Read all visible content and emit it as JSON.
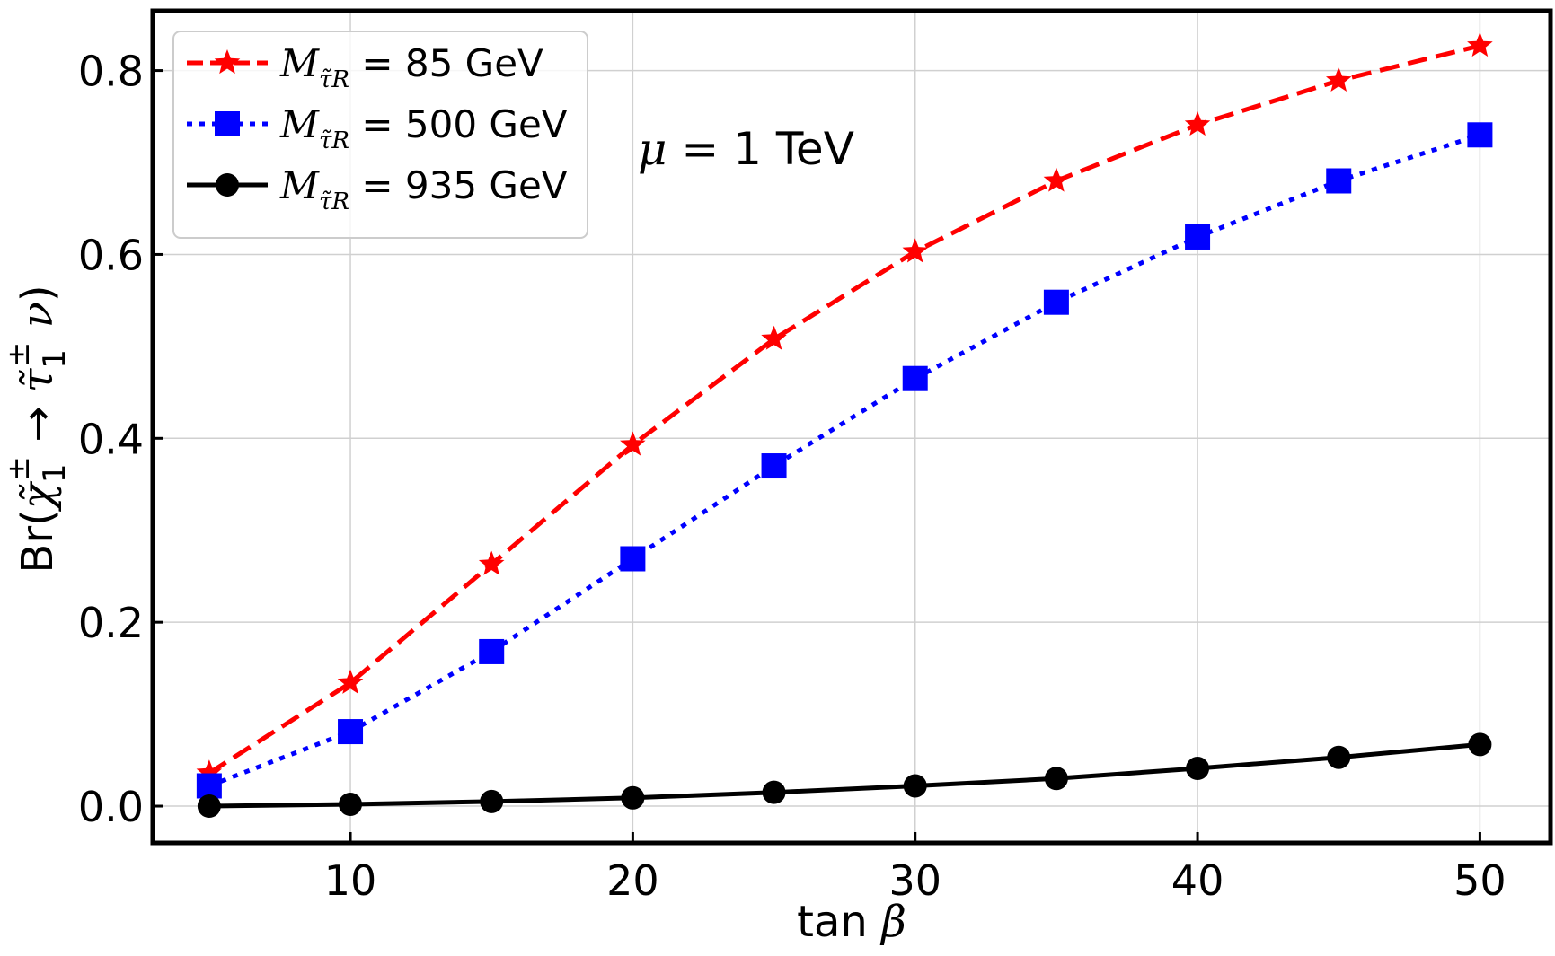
{
  "chart_data": {
    "type": "line",
    "xlabel": "tan β",
    "xlabel_text": "tan ",
    "xlabel_symbol": "β",
    "ylabel": "Br(χ̃1± → τ̃1± ν)",
    "xlim": [
      3,
      52.5
    ],
    "ylim": [
      -0.04,
      0.865
    ],
    "xticks": [
      10,
      20,
      30,
      40,
      50
    ],
    "yticks": [
      0.0,
      0.2,
      0.4,
      0.6,
      0.8
    ],
    "xtick_labels": [
      "10",
      "20",
      "30",
      "40",
      "50"
    ],
    "ytick_labels": [
      "0.0",
      "0.2",
      "0.4",
      "0.6",
      "0.8"
    ],
    "grid": true,
    "legend_position": "top-left",
    "annotation": {
      "symbol": "μ",
      "text": " = 1 TeV"
    },
    "x": [
      5,
      10,
      15,
      20,
      25,
      30,
      35,
      40,
      45,
      50
    ],
    "series": [
      {
        "name": "M_τ̃R = 85 GeV",
        "legend_mass": "M",
        "legend_sub": "τ̃R",
        "legend_value": " = 85 GeV",
        "color": "#ff0000",
        "line_style": "dashed",
        "marker": "star",
        "values": [
          0.036,
          0.134,
          0.263,
          0.393,
          0.508,
          0.603,
          0.68,
          0.741,
          0.789,
          0.827
        ]
      },
      {
        "name": "M_τ̃R = 500 GeV",
        "legend_mass": "M",
        "legend_sub": "τ̃R",
        "legend_value": " = 500 GeV",
        "color": "#0000ff",
        "line_style": "dotted",
        "marker": "square",
        "values": [
          0.022,
          0.081,
          0.168,
          0.269,
          0.37,
          0.465,
          0.548,
          0.619,
          0.68,
          0.73
        ]
      },
      {
        "name": "M_τ̃R = 935 GeV",
        "legend_mass": "M",
        "legend_sub": "τ̃R",
        "legend_value": " = 935 GeV",
        "color": "#000000",
        "line_style": "solid",
        "marker": "circle",
        "values": [
          0.0,
          0.002,
          0.005,
          0.009,
          0.015,
          0.022,
          0.03,
          0.041,
          0.053,
          0.067
        ]
      }
    ]
  }
}
